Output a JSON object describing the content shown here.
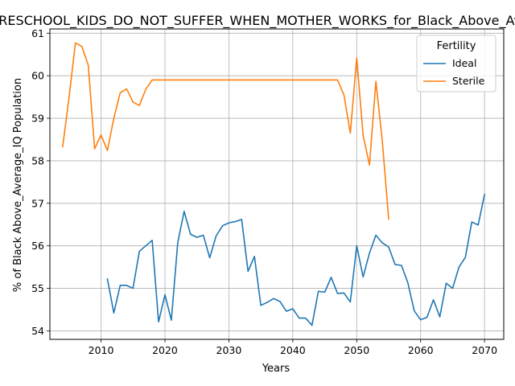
{
  "chart_data": {
    "type": "line",
    "title": "n_PRESCHOOL_KIDS_DO_NOT_SUFFER_WHEN_MOTHER_WORKS_for_Black_Above_Average_IQ",
    "xlabel": "Years",
    "ylabel": "% of Black Above_Average_IQ Population",
    "xlim": [
      2002,
      2073
    ],
    "ylim": [
      53.8,
      61.1
    ],
    "xticks": [
      2010,
      2020,
      2030,
      2040,
      2050,
      2060,
      2070
    ],
    "yticks": [
      54,
      55,
      56,
      57,
      58,
      59,
      60,
      61
    ],
    "grid": true,
    "legend": {
      "title": "Fertility",
      "placement": "top-right"
    },
    "series": [
      {
        "name": "Ideal",
        "color": "#1f77b4",
        "x": [
          2011,
          2012,
          2013,
          2014,
          2015,
          2016,
          2017,
          2018,
          2019,
          2020,
          2021,
          2022,
          2023,
          2024,
          2025,
          2026,
          2027,
          2028,
          2029,
          2030,
          2031,
          2032,
          2033,
          2034,
          2035,
          2036,
          2037,
          2038,
          2039,
          2040,
          2041,
          2042,
          2043,
          2044,
          2045,
          2046,
          2047,
          2048,
          2049,
          2050,
          2051,
          2052,
          2053,
          2054,
          2055,
          2056,
          2057,
          2058,
          2059,
          2060,
          2061,
          2062,
          2063,
          2064,
          2065,
          2066,
          2067,
          2068,
          2069,
          2070
        ],
        "y": [
          55.22,
          54.42,
          55.07,
          55.07,
          55.0,
          55.87,
          56.0,
          56.13,
          54.21,
          54.85,
          54.25,
          56.07,
          56.81,
          56.27,
          56.2,
          56.25,
          55.72,
          56.23,
          56.47,
          56.54,
          56.57,
          56.62,
          55.4,
          55.75,
          54.6,
          54.67,
          54.76,
          54.69,
          54.46,
          54.52,
          54.3,
          54.3,
          54.13,
          54.93,
          54.91,
          55.26,
          54.88,
          54.89,
          54.68,
          56.0,
          55.27,
          55.83,
          56.25,
          56.07,
          55.97,
          55.56,
          55.54,
          55.13,
          54.47,
          54.26,
          54.32,
          54.73,
          54.33,
          55.12,
          55.0,
          55.5,
          55.73,
          56.56,
          56.49,
          57.21
        ]
      },
      {
        "name": "Sterile",
        "color": "#ff7f0e",
        "x": [
          2004,
          2005,
          2006,
          2007,
          2008,
          2009,
          2010,
          2011,
          2012,
          2013,
          2014,
          2015,
          2016,
          2017,
          2018,
          2019,
          2020,
          2021,
          2022,
          2023,
          2024,
          2025,
          2026,
          2027,
          2028,
          2029,
          2030,
          2031,
          2032,
          2033,
          2034,
          2035,
          2036,
          2037,
          2038,
          2039,
          2040,
          2041,
          2042,
          2043,
          2044,
          2045,
          2046,
          2047,
          2048,
          2049,
          2050,
          2051,
          2052,
          2053,
          2054,
          2055
        ],
        "y": [
          58.33,
          59.5,
          60.77,
          60.69,
          60.25,
          58.28,
          58.61,
          58.24,
          59.0,
          59.6,
          59.69,
          59.38,
          59.3,
          59.68,
          59.9,
          59.9,
          59.9,
          59.9,
          59.9,
          59.9,
          59.9,
          59.9,
          59.9,
          59.9,
          59.9,
          59.9,
          59.9,
          59.9,
          59.9,
          59.9,
          59.9,
          59.9,
          59.9,
          59.9,
          59.9,
          59.9,
          59.9,
          59.9,
          59.9,
          59.9,
          59.9,
          59.9,
          59.9,
          59.9,
          59.55,
          58.65,
          60.42,
          58.6,
          57.9,
          59.87,
          58.47,
          56.63
        ]
      }
    ]
  }
}
